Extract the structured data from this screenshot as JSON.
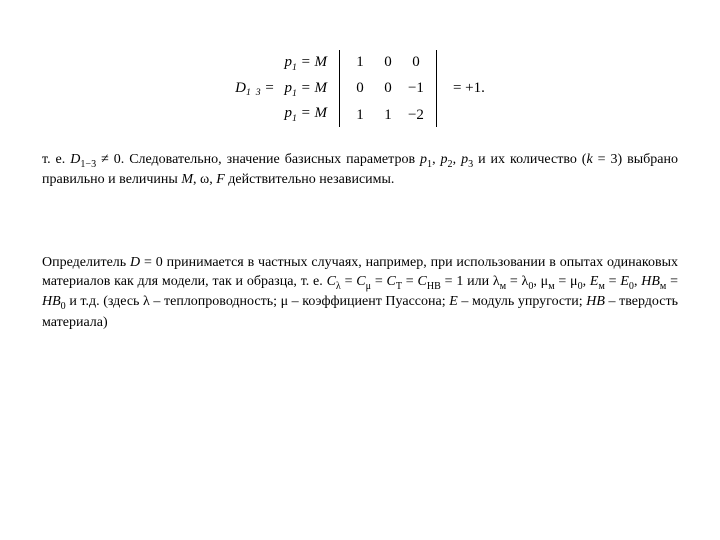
{
  "matrix": {
    "label_html": "<i>D</i><sub>1&nbsp;&nbsp;3</sub> =",
    "row_labels": [
      "<i>p</i><sub>1</sub> = <i>M</i>",
      "<i>p</i><sub>1</sub> = <i>M</i>",
      "<i>p</i><sub>1</sub> = <i>M</i>"
    ],
    "rows": [
      [
        "1",
        "0",
        "0"
      ],
      [
        "0",
        "0",
        "−1"
      ],
      [
        "1",
        "1",
        "−2"
      ]
    ],
    "result": "= +1."
  },
  "para1_html": "т. е. <i>D</i><sub>1−3</sub> ≠ 0. Следовательно, значение базисных параметров <i>p</i><sub>1</sub>, <i>p</i><sub>2</sub>, <i>p</i><sub>3</sub> и их количество (<i>k</i> = 3) выбрано правильно и величины <i>M</i>, ω, <i>F</i> действительно независимы.",
  "para2_html": "Определитель <i>D</i> = 0 принимается в частных случаях, например, при использовании в опытах одинаковых материалов как для модели, так и образца, т. е. <i>C</i><sub>λ</sub> = <i>C</i><sub>μ</sub> = <i>C</i><sub>T</sub> = <i>C</i><sub>HB</sub> = 1 или λ<sub>м</sub> = λ<sub>0</sub>, μ<sub>м</sub> = μ<sub>0</sub>, <i>E</i><sub>м</sub> = <i>E</i><sub>0</sub>, <i>HB</i><sub>м</sub> = <i>HB</i><sub>0</sub> и т.д. (здесь λ – теплопроводность; μ – коэффициент Пуассона; <i>E</i> – модуль упругости; <i>HB</i> – твердость материала)"
}
